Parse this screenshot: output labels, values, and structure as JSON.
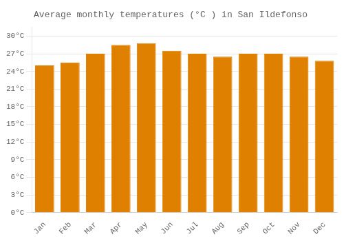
{
  "chart_data": {
    "type": "bar",
    "title": "Average monthly temperatures (°C ) in San Ildefonso",
    "categories": [
      "Jan",
      "Feb",
      "Mar",
      "Apr",
      "May",
      "Jun",
      "Jul",
      "Aug",
      "Sep",
      "Oct",
      "Nov",
      "Dec"
    ],
    "values": [
      25.0,
      25.5,
      27.0,
      28.5,
      28.8,
      27.5,
      27.0,
      26.5,
      27.0,
      27.0,
      26.5,
      25.8
    ],
    "color": "#E08000",
    "ylim": [
      0,
      31.5
    ],
    "yticks": [
      {
        "value": 0,
        "label": "0°C"
      },
      {
        "value": 3,
        "label": "3°C"
      },
      {
        "value": 6,
        "label": "6°C"
      },
      {
        "value": 9,
        "label": "9°C"
      },
      {
        "value": 12,
        "label": "12°C"
      },
      {
        "value": 15,
        "label": "15°C"
      },
      {
        "value": 18,
        "label": "18°C"
      },
      {
        "value": 21,
        "label": "21°C"
      },
      {
        "value": 24,
        "label": "24°C"
      },
      {
        "value": 27,
        "label": "27°C"
      },
      {
        "value": 30,
        "label": "30°C"
      }
    ],
    "grid": true
  }
}
